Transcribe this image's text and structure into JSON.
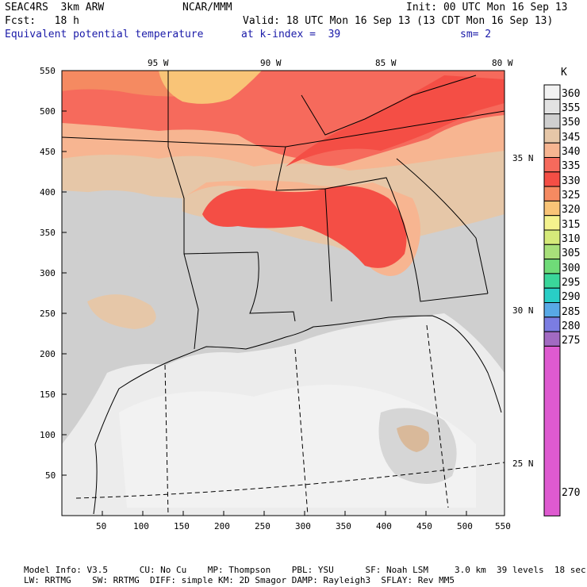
{
  "header": {
    "line1_left": "SEAC4RS  3km ARW",
    "line1_mid": "NCAR/MMM",
    "line1_right": "Init: 00 UTC Mon 16 Sep 13",
    "line2_left": "Fcst:   18 h",
    "line2_right": "Valid: 18 UTC Mon 16 Sep 13 (13 CDT Mon 16 Sep 13)",
    "line3_left": "Equivalent potential temperature",
    "line3_mid": "at k-index =  39",
    "line3_right": "sm= 2"
  },
  "map": {
    "lon_labels": [
      "95 W",
      "90 W",
      "85 W",
      "80 W"
    ],
    "lat_labels": [
      "35 N",
      "30 N",
      "25 N"
    ],
    "y_ticks": [
      "550",
      "500",
      "450",
      "400",
      "350",
      "300",
      "250",
      "200",
      "150",
      "100",
      "50"
    ],
    "x_ticks": [
      "50",
      "100",
      "150",
      "200",
      "250",
      "300",
      "350",
      "400",
      "450",
      "500",
      "550"
    ]
  },
  "legend": {
    "unit": "K",
    "levels": [
      "360",
      "355",
      "350",
      "345",
      "340",
      "335",
      "330",
      "325",
      "320",
      "315",
      "310",
      "305",
      "300",
      "295",
      "290",
      "285",
      "280",
      "275",
      "270"
    ],
    "colors": [
      "#f2f2f2",
      "#e2e2e2",
      "#cfcfcf",
      "#e6c7a8",
      "#f7b591",
      "#f66a5c",
      "#f44e45",
      "#f58a61",
      "#f9c477",
      "#f4f28e",
      "#d6ea7a",
      "#a8e07a",
      "#6fdb78",
      "#3ad69a",
      "#29cec6",
      "#58a9e6",
      "#7b7de2",
      "#a26ac2",
      "#de5ad0"
    ]
  },
  "footer": {
    "line1": "Model Info: V3.5      CU: No Cu    MP: Thompson    PBL: YSU      SF: Noah LSM     3.0 km  39 levels  18 sec",
    "line2": "LW: RRTMG    SW: RRTMG  DIFF: simple KM: 2D Smagor DAMP: Rayleigh3  SFLAY: Rev MM5"
  }
}
